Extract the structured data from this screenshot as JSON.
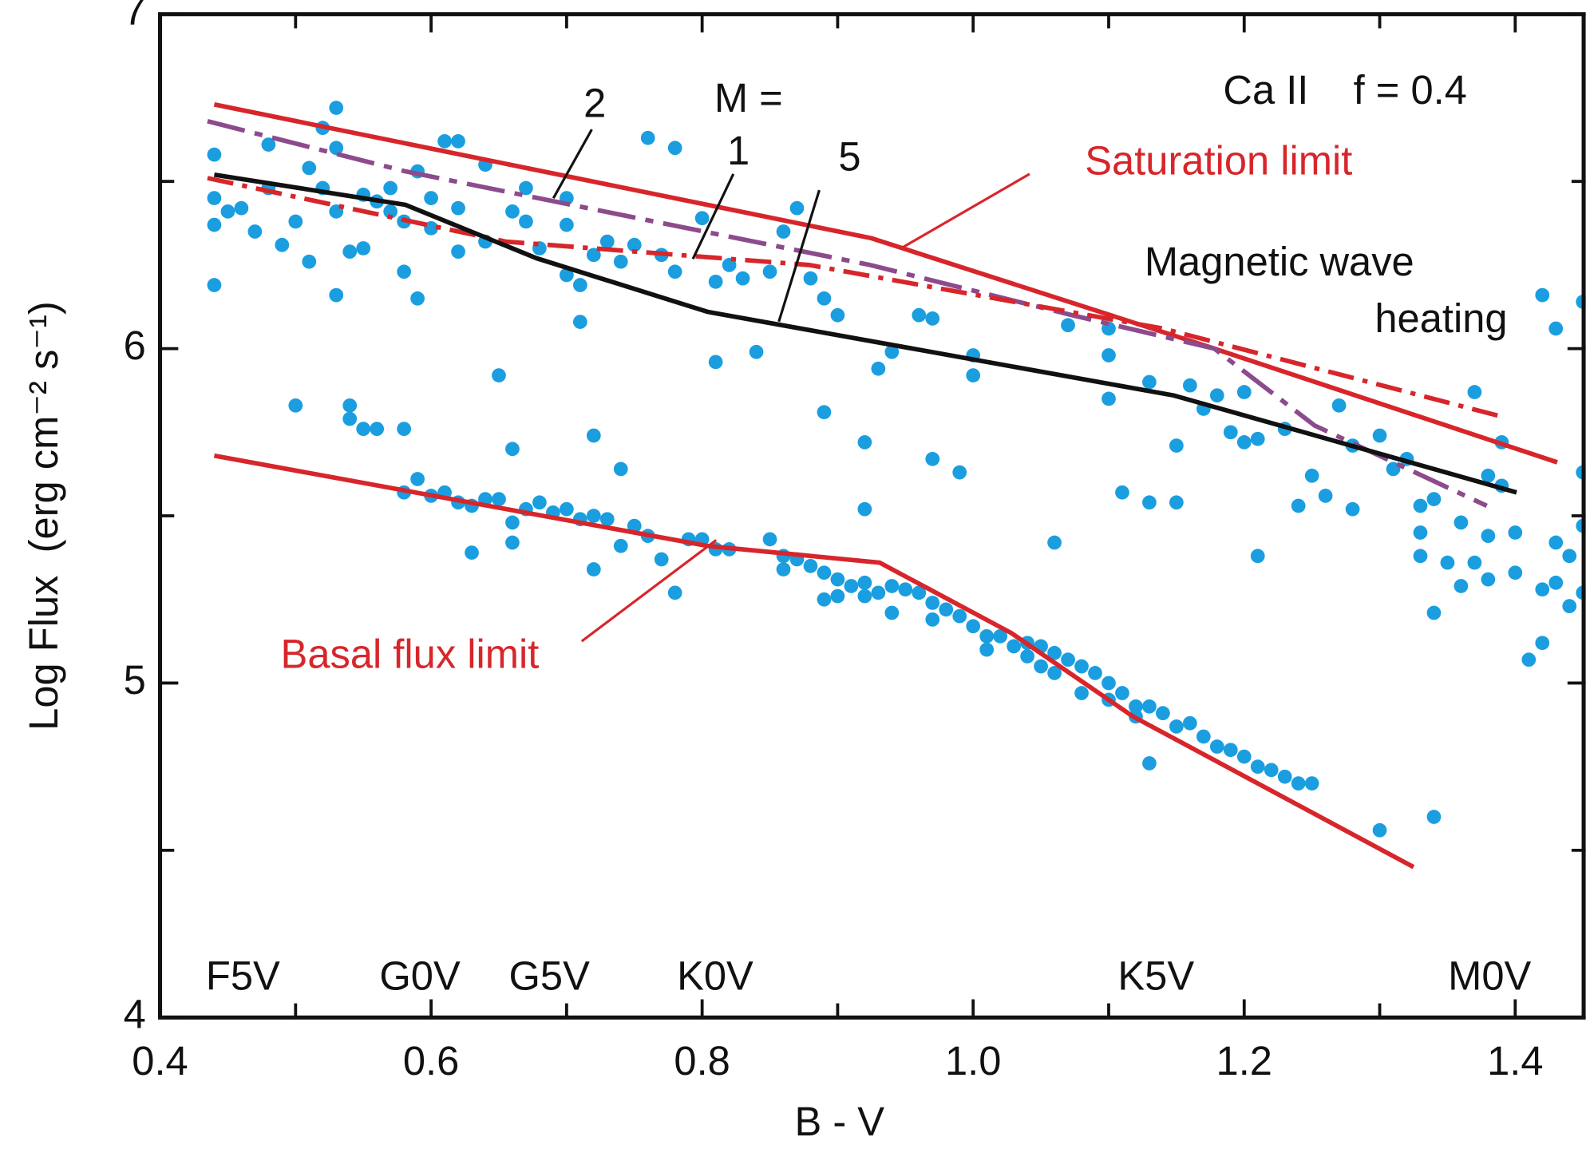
{
  "chart_data": {
    "type": "scatter",
    "xlabel": "B - V",
    "ylabel": "Log Flux  (erg cm⁻² s⁻¹)",
    "xlim": [
      0.4,
      1.452
    ],
    "ylim": [
      4,
      7
    ],
    "xticks": [
      {
        "value": 0.4,
        "label": "0.4"
      },
      {
        "value": 0.6,
        "label": "0.6"
      },
      {
        "value": 0.8,
        "label": "0.8"
      },
      {
        "value": 1,
        "label": "1.0"
      },
      {
        "value": 1.2,
        "label": "1.2"
      },
      {
        "value": 1.4,
        "label": "1.4"
      }
    ],
    "xticks_minor": [
      0.5,
      0.7,
      0.9,
      1.1,
      1.3
    ],
    "yticks": [
      4,
      5,
      6,
      7
    ],
    "yticks_minor": [
      4.5,
      5.5,
      6.5
    ],
    "point_color": "#1a9ee0",
    "points": {
      "x": [
        0.44,
        0.44,
        0.44,
        0.44,
        0.45,
        0.46,
        0.47,
        0.48,
        0.48,
        0.49,
        0.5,
        0.51,
        0.51,
        0.52,
        0.52,
        0.53,
        0.53,
        0.53,
        0.53,
        0.54,
        0.55,
        0.55,
        0.56,
        0.57,
        0.57,
        0.58,
        0.58,
        0.59,
        0.59,
        0.6,
        0.6,
        0.61,
        0.62,
        0.62,
        0.62,
        0.64,
        0.64,
        0.65,
        0.66,
        0.67,
        0.67,
        0.68,
        0.7,
        0.7,
        0.7,
        0.71,
        0.71,
        0.72,
        0.73,
        0.74,
        0.75,
        0.76,
        0.77,
        0.78,
        0.78,
        0.8,
        0.81,
        0.81,
        0.82,
        0.83,
        0.84,
        0.85,
        0.86,
        0.87,
        0.88,
        0.89,
        0.89,
        0.9,
        0.92,
        0.92,
        0.93,
        0.94,
        0.96,
        0.97,
        0.97,
        0.99,
        1.0,
        1.0,
        1.07,
        1.1,
        1.1,
        1.1,
        1.11,
        1.13,
        1.13,
        1.15,
        1.15,
        1.16,
        1.17,
        1.18,
        1.19,
        1.2,
        1.2,
        1.21,
        1.21,
        1.23,
        1.24,
        1.25,
        1.26,
        1.27,
        1.28,
        1.28,
        1.3,
        1.31,
        1.32,
        1.33,
        1.33,
        1.33,
        1.34,
        1.34,
        1.35,
        1.36,
        1.36,
        1.37,
        1.37,
        1.38,
        1.38,
        1.38,
        1.39,
        1.39,
        1.4,
        1.4,
        1.41,
        1.42,
        1.42,
        1.42,
        1.43,
        1.43,
        1.43,
        1.44,
        1.44,
        1.45,
        1.45,
        1.45,
        1.45,
        0.5,
        0.54,
        0.54,
        0.55,
        0.56,
        0.58,
        0.66,
        0.72,
        0.74,
        1.06,
        0.58,
        0.59,
        0.6,
        0.61,
        0.62,
        0.63,
        0.63,
        0.64,
        0.65,
        0.66,
        0.66,
        0.67,
        0.68,
        0.69,
        0.7,
        0.71,
        0.72,
        0.72,
        0.73,
        0.74,
        0.75,
        0.76,
        0.77,
        0.78,
        0.79,
        0.8,
        0.81,
        0.82,
        0.85,
        0.86,
        0.86,
        0.87,
        0.88,
        0.89,
        0.89,
        0.9,
        0.9,
        0.91,
        0.92,
        0.92,
        0.93,
        0.94,
        0.94,
        0.95,
        0.96,
        0.97,
        0.97,
        0.98,
        0.99,
        1.0,
        1.01,
        1.01,
        1.02,
        1.03,
        1.04,
        1.04,
        1.05,
        1.05,
        1.06,
        1.06,
        1.07,
        1.08,
        1.08,
        1.09,
        1.1,
        1.1,
        1.11,
        1.12,
        1.12,
        1.13,
        1.13,
        1.14,
        1.15,
        1.16,
        1.17,
        1.18,
        1.19,
        1.2,
        1.21,
        1.22,
        1.23,
        1.24,
        1.25,
        1.3,
        1.34
      ],
      "y": [
        6.58,
        6.45,
        6.37,
        6.19,
        6.41,
        6.42,
        6.35,
        6.48,
        6.61,
        6.31,
        6.38,
        6.26,
        6.54,
        6.66,
        6.48,
        6.72,
        6.6,
        6.41,
        6.16,
        6.29,
        6.46,
        6.3,
        6.44,
        6.41,
        6.48,
        6.38,
        6.23,
        6.15,
        6.53,
        6.45,
        6.36,
        6.62,
        6.62,
        6.42,
        6.29,
        6.55,
        6.32,
        5.92,
        6.41,
        6.48,
        6.38,
        6.3,
        6.37,
        6.22,
        6.45,
        6.19,
        6.08,
        6.28,
        6.32,
        6.26,
        6.31,
        6.63,
        6.28,
        6.6,
        6.23,
        6.39,
        6.2,
        5.96,
        6.25,
        6.21,
        5.99,
        6.23,
        6.35,
        6.42,
        6.21,
        6.15,
        5.81,
        6.1,
        5.72,
        5.52,
        5.94,
        5.99,
        6.1,
        6.09,
        5.67,
        5.63,
        5.98,
        5.92,
        6.07,
        6.06,
        5.98,
        5.85,
        5.57,
        5.9,
        5.54,
        5.71,
        5.54,
        5.89,
        5.82,
        5.86,
        5.75,
        5.87,
        5.72,
        5.73,
        5.38,
        5.76,
        5.53,
        5.62,
        5.56,
        5.83,
        5.71,
        5.52,
        5.74,
        5.64,
        5.67,
        5.53,
        5.45,
        5.38,
        5.21,
        5.55,
        5.36,
        5.48,
        5.29,
        5.87,
        5.36,
        5.62,
        5.44,
        5.31,
        5.72,
        5.59,
        5.45,
        5.33,
        5.07,
        6.16,
        5.28,
        5.12,
        6.06,
        5.42,
        5.3,
        5.23,
        5.38,
        6.14,
        5.63,
        5.47,
        5.27,
        5.83,
        5.83,
        5.79,
        5.76,
        5.76,
        5.76,
        5.7,
        5.74,
        5.64,
        5.42,
        5.57,
        5.61,
        5.56,
        5.57,
        5.54,
        5.53,
        5.39,
        5.55,
        5.55,
        5.48,
        5.42,
        5.52,
        5.54,
        5.51,
        5.52,
        5.49,
        5.5,
        5.34,
        5.49,
        5.41,
        5.47,
        5.44,
        5.37,
        5.27,
        5.43,
        5.43,
        5.4,
        5.4,
        5.43,
        5.38,
        5.34,
        5.37,
        5.35,
        5.33,
        5.25,
        5.31,
        5.26,
        5.29,
        5.3,
        5.26,
        5.27,
        5.29,
        5.21,
        5.28,
        5.27,
        5.24,
        5.19,
        5.22,
        5.2,
        5.17,
        5.14,
        5.1,
        5.14,
        5.11,
        5.08,
        5.12,
        5.05,
        5.11,
        5.03,
        5.09,
        5.07,
        4.97,
        5.05,
        5.03,
        5.0,
        4.95,
        4.97,
        4.93,
        4.9,
        4.93,
        4.76,
        4.91,
        4.87,
        4.88,
        4.84,
        4.81,
        4.8,
        4.78,
        4.75,
        4.74,
        4.72,
        4.7,
        4.7,
        4.56,
        4.6
      ]
    },
    "series": [
      {
        "name": "Saturation limit",
        "type": "line",
        "style": "solid",
        "color": "#d7262b",
        "x": [
          0.44,
          0.925,
          1.178,
          1.431
        ],
        "values": [
          6.73,
          6.33,
          6.0,
          5.66
        ]
      },
      {
        "name": "2",
        "type": "line",
        "style": "dashed",
        "color": "#8c4b8c",
        "x": [
          0.435,
          0.581,
          0.924,
          1.073,
          1.178,
          1.252,
          1.379
        ],
        "values": [
          6.68,
          6.53,
          6.25,
          6.1,
          6.0,
          5.77,
          5.53
        ]
      },
      {
        "name": "1",
        "type": "line",
        "style": "dashdot",
        "color": "#d7262b",
        "x": [
          0.435,
          0.655,
          0.879,
          1.14,
          1.387
        ],
        "values": [
          6.51,
          6.32,
          6.25,
          6.06,
          5.8
        ]
      },
      {
        "name": "5",
        "type": "line",
        "style": "solid",
        "color": "#111111",
        "x": [
          0.44,
          0.581,
          0.678,
          0.804,
          1.148,
          1.401
        ],
        "values": [
          6.52,
          6.43,
          6.27,
          6.11,
          5.86,
          5.57
        ]
      },
      {
        "name": "Basal flux limit",
        "type": "line",
        "style": "solid",
        "color": "#d7262b",
        "x": [
          0.44,
          0.804,
          0.931,
          1.028,
          1.118,
          1.325
        ],
        "values": [
          5.68,
          5.41,
          5.36,
          5.15,
          4.9,
          4.45
        ]
      }
    ],
    "annotations": [
      "Ca II    f = 0.4",
      "M =",
      "Magnetic wave",
      "heating"
    ],
    "spectral_types": [
      "F5V",
      "G0V",
      "G5V",
      "K0V",
      "K5V",
      "M0V"
    ]
  }
}
